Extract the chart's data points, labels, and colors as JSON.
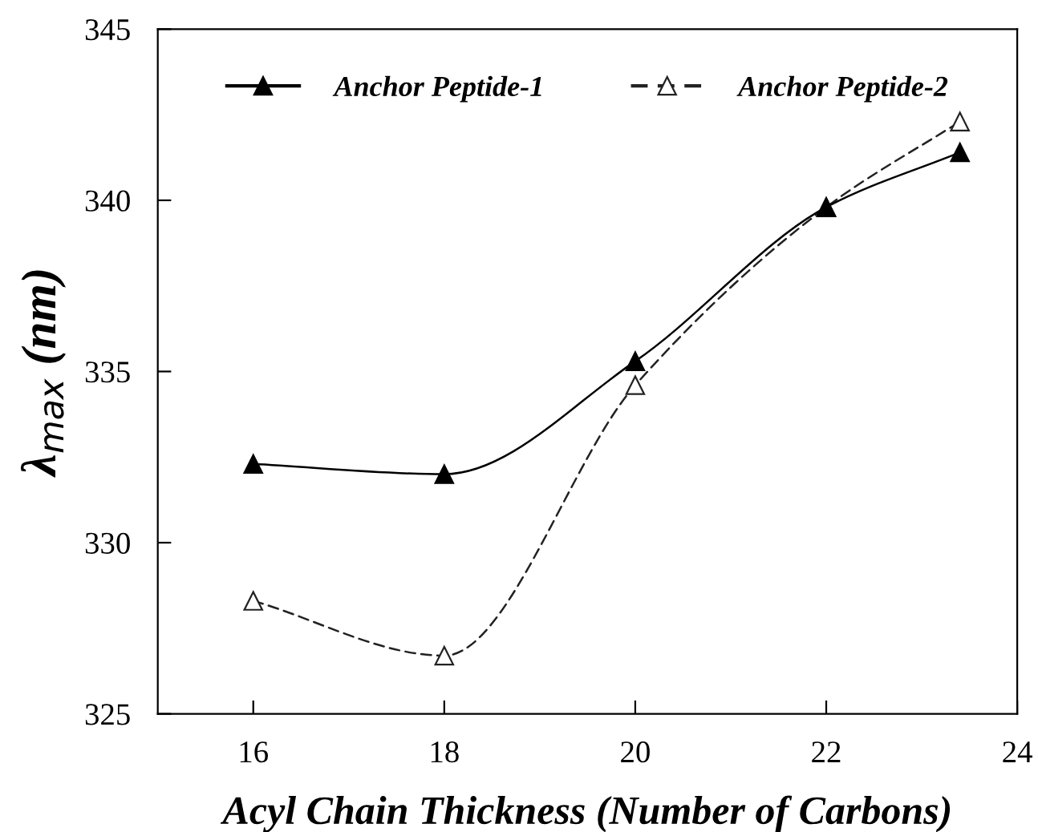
{
  "chart_data": {
    "type": "line",
    "xlabel": "Acyl Chain Thickness (Number of Carbons)",
    "ylabel": "λ$_{max}$ (nm)",
    "x": [
      16,
      18,
      20,
      22,
      23.4
    ],
    "series": [
      {
        "name": "Anchor Peptide-1",
        "color": "#000000",
        "values": [
          332.3,
          332.0,
          335.3,
          339.8,
          341.4
        ],
        "line_style": "solid",
        "marker": "triangle"
      },
      {
        "name": "Anchor Peptide-2",
        "color": "#222222",
        "values": [
          328.3,
          326.7,
          334.6,
          339.8,
          342.3
        ],
        "line_style": "dashed",
        "marker": "triangle"
      }
    ],
    "xlim": [
      15,
      24
    ],
    "xticks": [
      16,
      18,
      20,
      22,
      24
    ],
    "ylim": [
      325,
      345
    ],
    "yticks": [
      325,
      330,
      335,
      340,
      345
    ],
    "grid": false,
    "legend": "top"
  }
}
